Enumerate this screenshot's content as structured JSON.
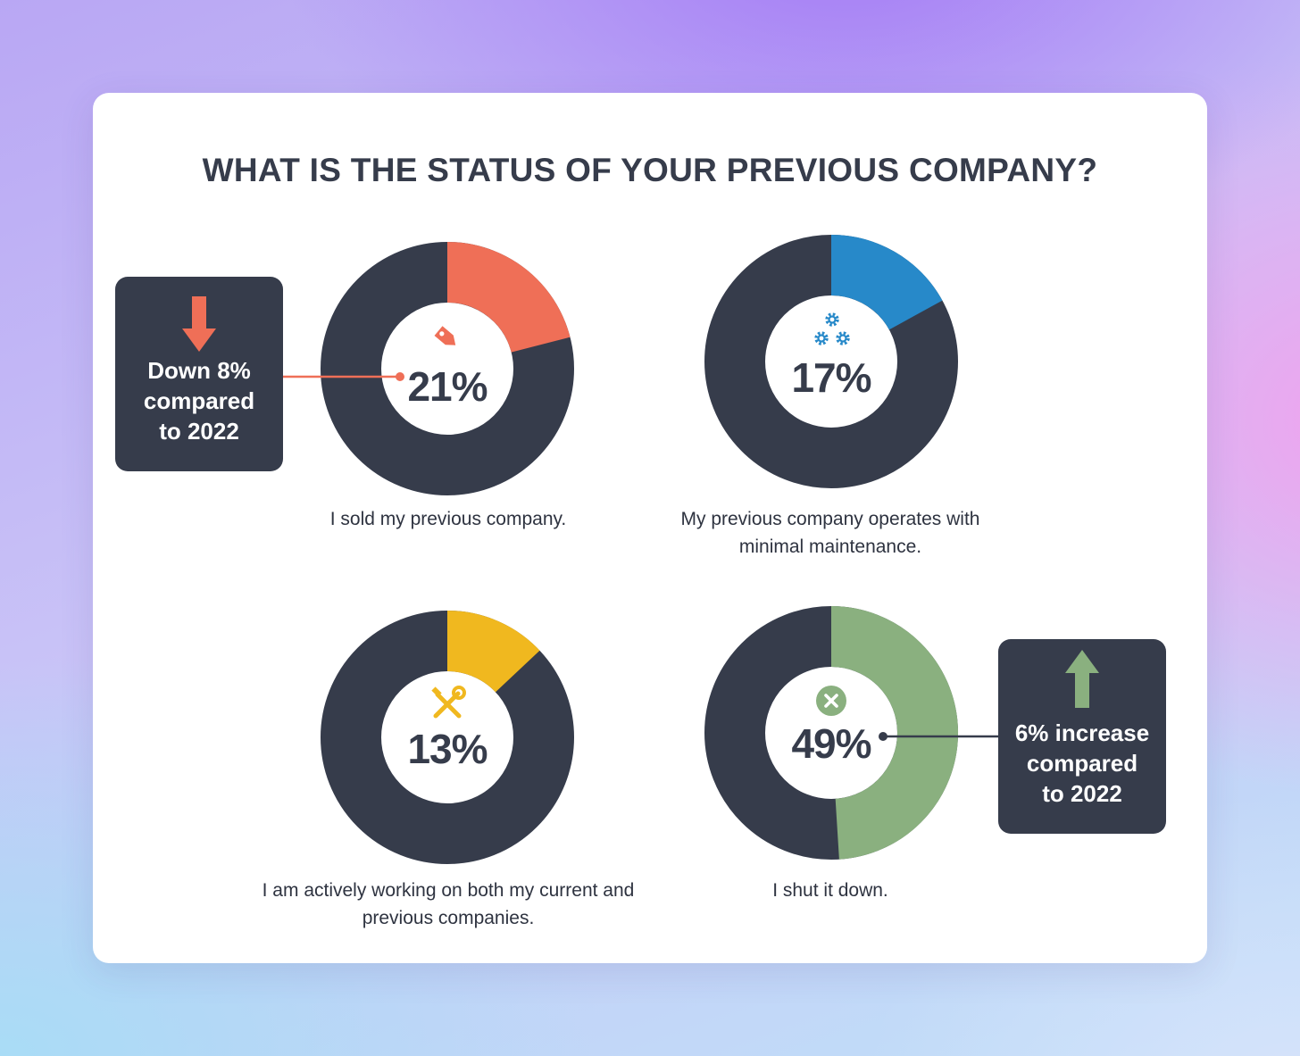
{
  "chart_data": {
    "type": "donut",
    "title": "WHAT IS THE STATUS OF YOUR PREVIOUS COMPANY?",
    "track_color": "#363c4b",
    "charts": [
      {
        "label": "I sold my previous company.",
        "value": 21,
        "display": "21%",
        "color": "#ef6f57",
        "icon": "price-tag-icon"
      },
      {
        "label": "My previous company operates with minimal maintenance.",
        "value": 17,
        "display": "17%",
        "color": "#2789c9",
        "icon": "gears-icon"
      },
      {
        "label": "I am actively working on both my current and previous companies.",
        "value": 13,
        "display": "13%",
        "color": "#f0b81f",
        "icon": "tools-icon"
      },
      {
        "label": "I shut it down.",
        "value": 49,
        "display": "49%",
        "color": "#8ab07f",
        "icon": "x-circle-icon"
      }
    ],
    "annotations": [
      {
        "text": "Down 8% compared to 2022",
        "lines": [
          "Down 8%",
          "compared",
          "to 2022"
        ],
        "direction": "down",
        "arrow_color": "#ef6f57",
        "target": 0
      },
      {
        "text": "6% increase compared to 2022",
        "lines": [
          "6% increase",
          "compared",
          "to 2022"
        ],
        "direction": "up",
        "arrow_color": "#8ab07f",
        "target": 3
      }
    ]
  }
}
